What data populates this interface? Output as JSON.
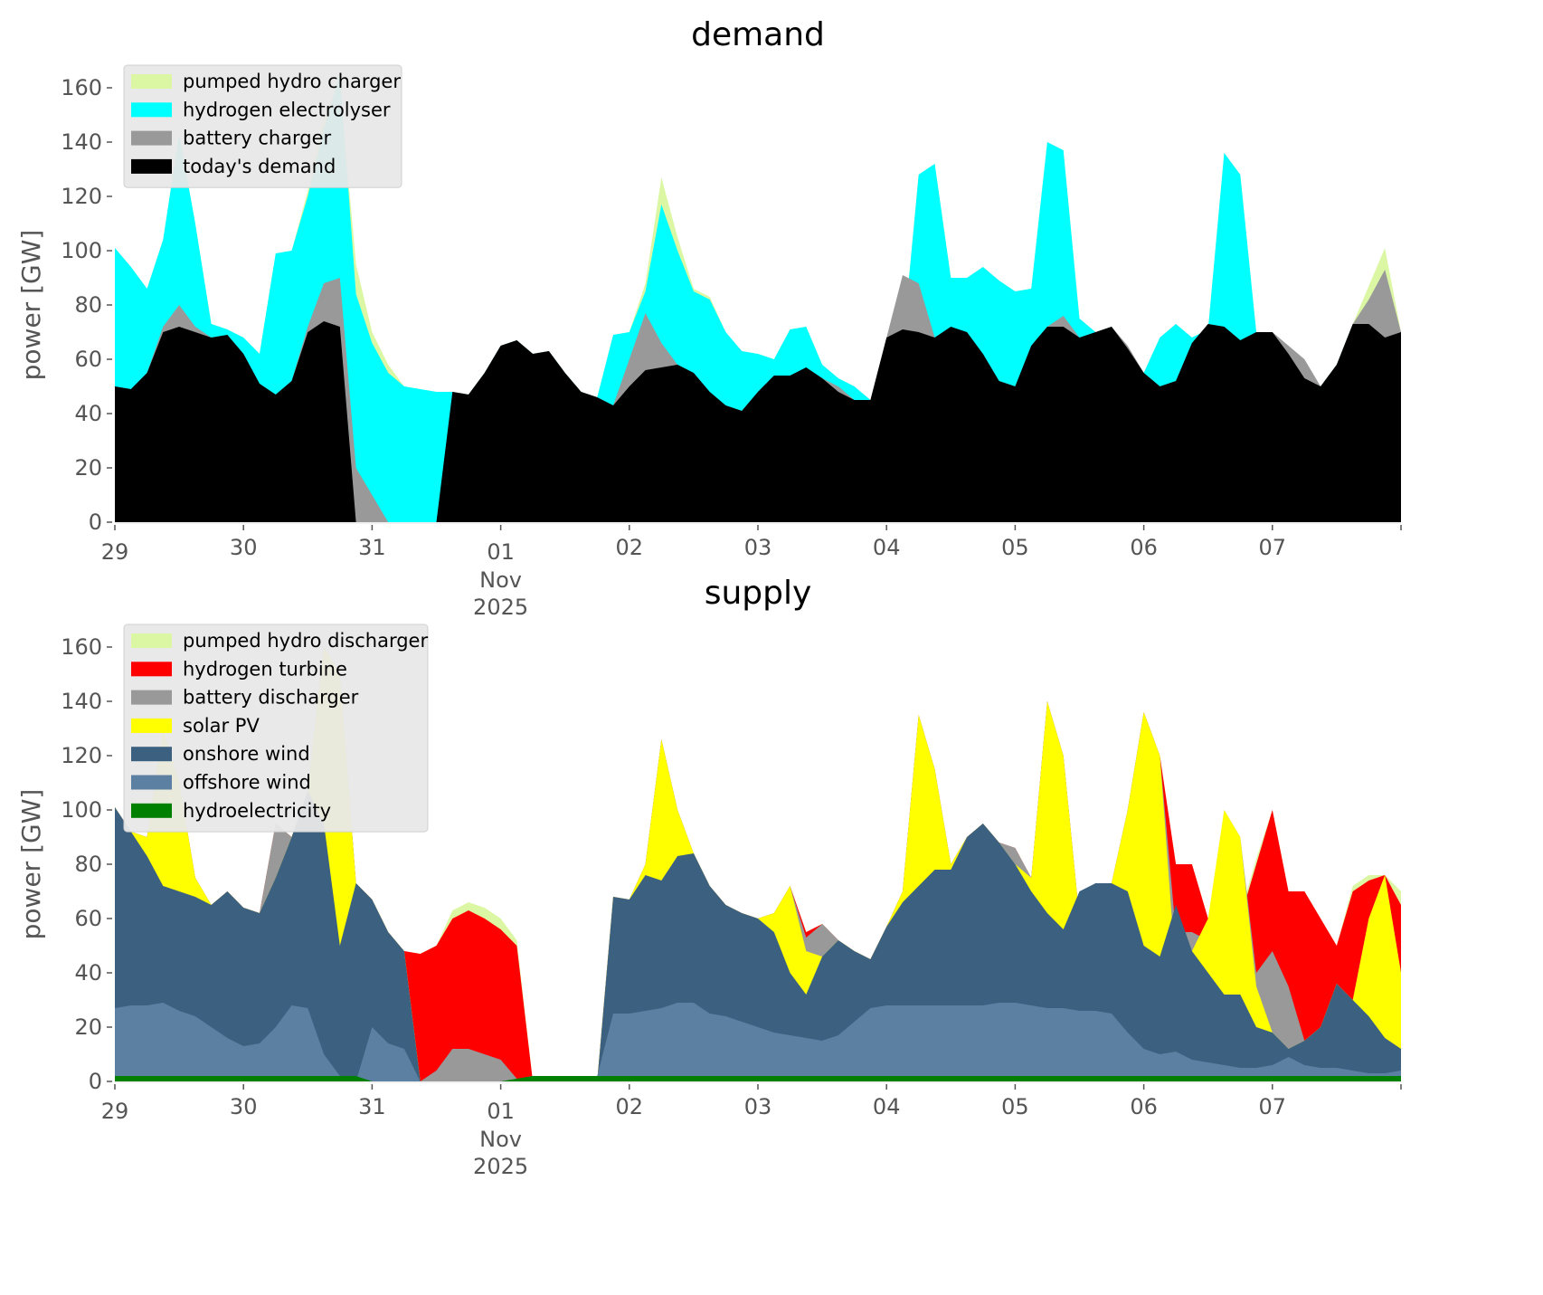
{
  "chart_data": [
    {
      "type": "area",
      "stacked": true,
      "title": "demand",
      "xlabel": "",
      "ylabel": "power [GW]",
      "ylim": [
        0,
        170
      ],
      "yticks": [
        0,
        20,
        40,
        60,
        80,
        100,
        120,
        140,
        160
      ],
      "xlim_days": [
        0,
        10
      ],
      "xticks": [
        {
          "day": 0,
          "label": "29"
        },
        {
          "day": 1,
          "label": "30"
        },
        {
          "day": 2,
          "label": "31"
        },
        {
          "day": 3,
          "label": "01",
          "sub": [
            "Nov",
            "2025"
          ]
        },
        {
          "day": 4,
          "label": "02"
        },
        {
          "day": 5,
          "label": "03"
        },
        {
          "day": 6,
          "label": "04"
        },
        {
          "day": 7,
          "label": "05"
        },
        {
          "day": 8,
          "label": "06"
        },
        {
          "day": 9,
          "label": "07"
        }
      ],
      "x_step_hours": 3,
      "legend": {
        "placement": "top-left",
        "entries": [
          "pumped hydro charger",
          "hydrogen electrolyser",
          "battery charger",
          "today's demand"
        ]
      },
      "series": [
        {
          "name": "today's demand",
          "color": "#000000",
          "cumulative_top": [
            50,
            49,
            55,
            70,
            72,
            70,
            68,
            69,
            62,
            51,
            47,
            52,
            70,
            74,
            72,
            0,
            0,
            0,
            0,
            0,
            0,
            48,
            47,
            55,
            65,
            67,
            62,
            63,
            55,
            48,
            46,
            43,
            50,
            56,
            57,
            58,
            55,
            48,
            43,
            41,
            48,
            54,
            54,
            57,
            53,
            48,
            45,
            45,
            68,
            71,
            70,
            68,
            72,
            70,
            62,
            52,
            50,
            65,
            72,
            72,
            68,
            70,
            72,
            64,
            55,
            50,
            52,
            66,
            73,
            72,
            67,
            70,
            70,
            62,
            53,
            50,
            58,
            73,
            73,
            68,
            70,
            72,
            60,
            55
          ]
        },
        {
          "name": "battery charger",
          "color": "#999999",
          "cumulative_top": [
            50,
            49,
            55,
            72,
            80,
            72,
            68,
            69,
            62,
            51,
            47,
            52,
            72,
            88,
            90,
            20,
            10,
            0,
            0,
            0,
            0,
            48,
            47,
            55,
            65,
            67,
            62,
            63,
            55,
            48,
            46,
            43,
            60,
            77,
            66,
            58,
            55,
            48,
            43,
            41,
            48,
            54,
            54,
            57,
            53,
            50,
            45,
            45,
            68,
            91,
            88,
            68,
            72,
            68,
            62,
            52,
            50,
            65,
            72,
            76,
            68,
            70,
            72,
            65,
            55,
            50,
            52,
            66,
            73,
            72,
            67,
            70,
            70,
            65,
            60,
            50,
            58,
            73,
            82,
            93,
            70,
            72,
            60,
            55
          ]
        },
        {
          "name": "hydrogen electrolyser",
          "color": "#00ffff",
          "cumulative_top": [
            101,
            94,
            86,
            104,
            143,
            110,
            73,
            71,
            68,
            62,
            99,
            100,
            120,
            145,
            165,
            84,
            66,
            55,
            50,
            49,
            48,
            48,
            47,
            55,
            65,
            67,
            62,
            63,
            55,
            48,
            46,
            69,
            70,
            85,
            117,
            100,
            85,
            82,
            70,
            63,
            62,
            60,
            71,
            72,
            58,
            53,
            50,
            45,
            55,
            65,
            128,
            132,
            90,
            90,
            94,
            89,
            85,
            86,
            140,
            137,
            75,
            70,
            72,
            64,
            55,
            68,
            73,
            68,
            71,
            136,
            128,
            70,
            70,
            62,
            53,
            50,
            58,
            73,
            73,
            68,
            70,
            72,
            60,
            55
          ]
        },
        {
          "name": "pumped hydro charger",
          "color": "#dcf7a4",
          "cumulative_top": [
            101,
            94,
            86,
            104,
            143,
            110,
            73,
            71,
            68,
            62,
            99,
            100,
            122,
            150,
            162,
            95,
            70,
            58,
            50,
            49,
            48,
            48,
            47,
            55,
            65,
            67,
            62,
            63,
            55,
            48,
            46,
            69,
            70,
            88,
            127,
            105,
            86,
            83,
            70,
            63,
            62,
            60,
            71,
            72,
            58,
            53,
            50,
            45,
            55,
            65,
            128,
            132,
            90,
            90,
            94,
            89,
            85,
            86,
            140,
            137,
            75,
            70,
            72,
            64,
            55,
            68,
            73,
            68,
            71,
            136,
            128,
            70,
            70,
            62,
            53,
            50,
            58,
            73,
            87,
            101,
            70,
            72,
            60,
            55
          ]
        }
      ]
    },
    {
      "type": "area",
      "stacked": true,
      "title": "supply",
      "xlabel": "",
      "ylabel": "power [GW]",
      "ylim": [
        0,
        170
      ],
      "yticks": [
        0,
        20,
        40,
        60,
        80,
        100,
        120,
        140,
        160
      ],
      "xlim_days": [
        0,
        10
      ],
      "xticks": [
        {
          "day": 0,
          "label": "29"
        },
        {
          "day": 1,
          "label": "30"
        },
        {
          "day": 2,
          "label": "31"
        },
        {
          "day": 3,
          "label": "01",
          "sub": [
            "Nov",
            "2025"
          ]
        },
        {
          "day": 4,
          "label": "02"
        },
        {
          "day": 5,
          "label": "03"
        },
        {
          "day": 6,
          "label": "04"
        },
        {
          "day": 7,
          "label": "05"
        },
        {
          "day": 8,
          "label": "06"
        },
        {
          "day": 9,
          "label": "07"
        }
      ],
      "x_step_hours": 3,
      "legend": {
        "placement": "top-left",
        "entries": [
          "pumped hydro discharger",
          "hydrogen turbine",
          "battery discharger",
          "solar PV",
          "onshore wind",
          "offshore wind",
          "hydroelectricity"
        ]
      },
      "series": [
        {
          "name": "hydroelectricity",
          "color": "#008000",
          "cumulative_top": [
            2,
            2,
            2,
            2,
            2,
            2,
            2,
            2,
            2,
            2,
            2,
            2,
            2,
            2,
            2,
            2,
            0,
            0,
            0,
            0,
            0,
            0,
            0,
            0,
            0,
            1,
            2,
            2,
            2,
            2,
            2,
            2,
            2,
            2,
            2,
            2,
            2,
            2,
            2,
            2,
            2,
            2,
            2,
            2,
            2,
            2,
            2,
            2,
            2,
            2,
            2,
            2,
            2,
            2,
            2,
            2,
            2,
            2,
            2,
            2,
            2,
            2,
            2,
            2,
            2,
            2,
            2,
            2,
            2,
            2,
            2,
            2,
            2,
            2,
            2,
            2,
            2,
            2,
            2,
            2,
            2,
            2,
            2,
            2
          ]
        },
        {
          "name": "offshore wind",
          "color": "#5b80a1",
          "cumulative_top": [
            27,
            28,
            28,
            29,
            26,
            24,
            20,
            16,
            13,
            14,
            20,
            28,
            27,
            10,
            2,
            0,
            20,
            14,
            12,
            0,
            0,
            0,
            0,
            0,
            0,
            1,
            2,
            2,
            2,
            2,
            2,
            25,
            25,
            26,
            27,
            29,
            29,
            25,
            24,
            22,
            20,
            18,
            17,
            16,
            15,
            17,
            22,
            27,
            28,
            28,
            28,
            28,
            28,
            28,
            28,
            29,
            29,
            28,
            27,
            27,
            26,
            26,
            25,
            18,
            12,
            10,
            11,
            8,
            7,
            6,
            5,
            5,
            6,
            9,
            6,
            5,
            5,
            4,
            3,
            3,
            4,
            4,
            3,
            3
          ]
        },
        {
          "name": "onshore wind",
          "color": "#3c6080",
          "cumulative_top": [
            101,
            92,
            83,
            72,
            70,
            68,
            65,
            70,
            64,
            62,
            75,
            90,
            107,
            95,
            50,
            73,
            67,
            55,
            48,
            0,
            0,
            0,
            0,
            0,
            0,
            0,
            0,
            0,
            0,
            0,
            0,
            68,
            67,
            76,
            74,
            83,
            84,
            72,
            65,
            62,
            60,
            55,
            40,
            32,
            46,
            52,
            48,
            45,
            57,
            66,
            72,
            78,
            78,
            90,
            95,
            88,
            80,
            70,
            62,
            56,
            70,
            73,
            73,
            70,
            50,
            46,
            65,
            48,
            40,
            32,
            32,
            20,
            18,
            12,
            15,
            20,
            36,
            30,
            24,
            16,
            12,
            10,
            11,
            10
          ]
        },
        {
          "name": "solar PV",
          "color": "#ffff00",
          "cumulative_top": [
            101,
            92,
            90,
            130,
            110,
            75,
            65,
            70,
            64,
            62,
            75,
            90,
            107,
            160,
            150,
            73,
            67,
            55,
            48,
            0,
            0,
            0,
            0,
            0,
            0,
            0,
            0,
            0,
            0,
            0,
            0,
            68,
            67,
            80,
            126,
            100,
            84,
            72,
            65,
            62,
            60,
            62,
            72,
            48,
            46,
            52,
            48,
            45,
            57,
            70,
            135,
            115,
            80,
            90,
            95,
            88,
            80,
            75,
            140,
            120,
            60,
            73,
            73,
            100,
            136,
            120,
            40,
            48,
            60,
            100,
            90,
            35,
            18,
            12,
            15,
            20,
            36,
            30,
            60,
            76,
            40,
            11,
            12,
            10
          ]
        },
        {
          "name": "battery discharger",
          "color": "#999999",
          "cumulative_top": [
            101,
            92,
            90,
            130,
            110,
            75,
            65,
            70,
            64,
            62,
            95,
            90,
            107,
            160,
            150,
            73,
            67,
            55,
            48,
            0,
            4,
            12,
            12,
            10,
            8,
            1,
            0,
            0,
            0,
            0,
            0,
            68,
            67,
            80,
            126,
            100,
            84,
            72,
            65,
            62,
            60,
            62,
            72,
            53,
            58,
            52,
            48,
            45,
            57,
            70,
            135,
            115,
            80,
            90,
            95,
            88,
            86,
            75,
            140,
            120,
            60,
            73,
            73,
            100,
            136,
            120,
            55,
            55,
            52,
            100,
            90,
            40,
            48,
            35,
            15,
            20,
            36,
            30,
            60,
            76,
            40,
            13,
            12,
            10
          ]
        },
        {
          "name": "hydrogen turbine",
          "color": "#ff0000",
          "cumulative_top": [
            101,
            92,
            90,
            130,
            110,
            75,
            65,
            70,
            64,
            62,
            95,
            90,
            107,
            160,
            150,
            73,
            67,
            55,
            48,
            47,
            50,
            60,
            63,
            60,
            56,
            50,
            0,
            0,
            0,
            0,
            0,
            68,
            67,
            80,
            126,
            100,
            84,
            72,
            65,
            62,
            60,
            62,
            72,
            55,
            58,
            52,
            48,
            45,
            57,
            70,
            135,
            115,
            80,
            90,
            95,
            88,
            86,
            75,
            140,
            120,
            60,
            73,
            73,
            100,
            136,
            120,
            80,
            80,
            60,
            50,
            60,
            80,
            100,
            70,
            70,
            60,
            50,
            70,
            74,
            76,
            65,
            62,
            60,
            52
          ]
        },
        {
          "name": "pumped hydro discharger",
          "color": "#dcf7a4",
          "cumulative_top": [
            101,
            92,
            90,
            130,
            110,
            75,
            65,
            70,
            64,
            62,
            95,
            90,
            107,
            160,
            150,
            73,
            67,
            55,
            48,
            47,
            50,
            63,
            66,
            64,
            60,
            52,
            0,
            0,
            0,
            0,
            0,
            68,
            67,
            80,
            126,
            100,
            84,
            72,
            65,
            62,
            60,
            62,
            72,
            55,
            58,
            52,
            48,
            45,
            57,
            70,
            135,
            115,
            80,
            90,
            95,
            88,
            86,
            75,
            140,
            120,
            60,
            73,
            73,
            100,
            136,
            120,
            80,
            80,
            60,
            50,
            62,
            82,
            100,
            70,
            70,
            60,
            50,
            72,
            76,
            76,
            70,
            72,
            64,
            55
          ]
        }
      ]
    }
  ]
}
